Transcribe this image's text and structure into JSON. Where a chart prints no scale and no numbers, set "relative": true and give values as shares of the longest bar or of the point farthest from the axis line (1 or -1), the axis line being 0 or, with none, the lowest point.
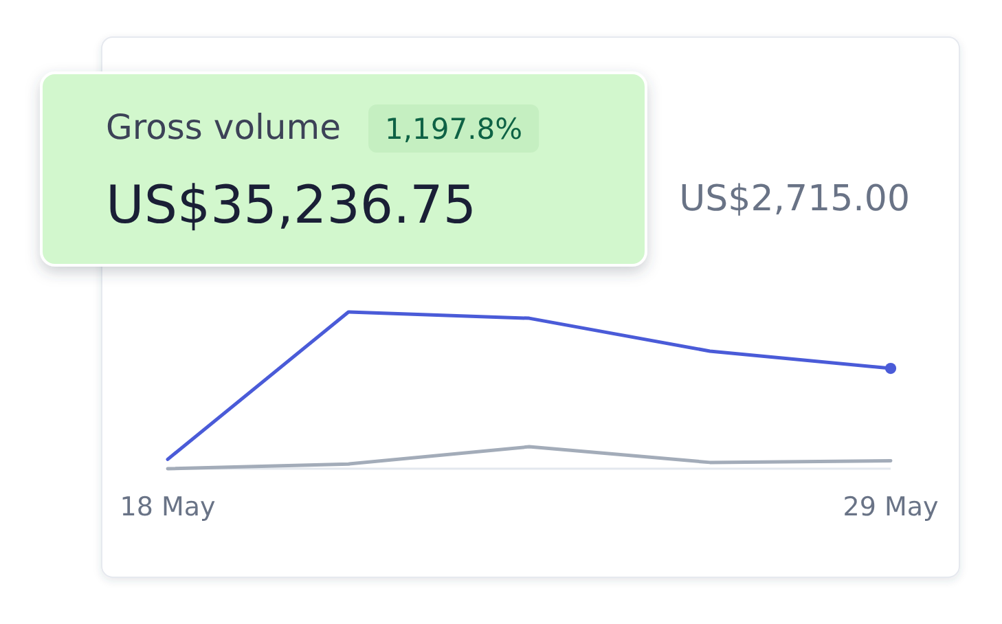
{
  "chart_data": {
    "type": "line",
    "title": "Gross volume",
    "subtitle": "US$35,236.75",
    "annotations": [
      "1,197.8%",
      "US$2,715.00"
    ],
    "categories": [
      "18 May",
      null,
      null,
      null,
      "29 May"
    ],
    "relative": true,
    "series": [
      {
        "color": "#4a5bd8",
        "values": [
          0.06,
          1,
          0.96,
          0.75,
          0.64
        ]
      },
      {
        "color": "#a3acb9",
        "values": [
          0,
          0.03,
          0.14,
          0.04,
          0.05
        ]
      },
      {
        "type": "scatter",
        "color": "#4a5bd8",
        "marker": "circle",
        "values": [
          null,
          null,
          null,
          null,
          0.64
        ]
      }
    ]
  }
}
